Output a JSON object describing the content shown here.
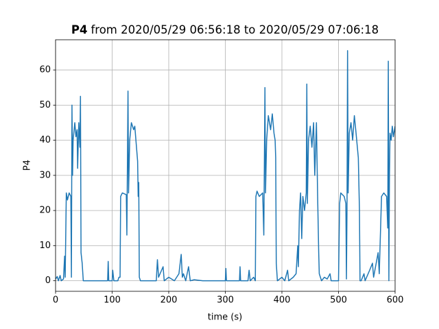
{
  "chart_data": {
    "type": "line",
    "title": {
      "variable": "P4",
      "text": "from 2020/05/29 06:56:18 to 2020/05/29 07:06:18"
    },
    "x_label": "time (s)",
    "y_label": "P4",
    "color": "#1f77b4",
    "grid": true,
    "xlim": [
      0,
      600
    ],
    "ylim": [
      -3.0,
      68.6
    ],
    "xticks": [
      0,
      100,
      200,
      300,
      400,
      500,
      600
    ],
    "yticks": [
      0,
      10,
      20,
      30,
      40,
      50,
      60
    ],
    "x": [
      0,
      3,
      5,
      8,
      10,
      14,
      16,
      17,
      18,
      19,
      21,
      24,
      27,
      28,
      29,
      30,
      31,
      34,
      36,
      38,
      39,
      41,
      43,
      44,
      45,
      47,
      49,
      92,
      93,
      94,
      100,
      101,
      103,
      110,
      112,
      114,
      115,
      118,
      125,
      126,
      128,
      129,
      131,
      134,
      138,
      140,
      143,
      145,
      146,
      147,
      148,
      150,
      178,
      180,
      182,
      190,
      192,
      200,
      210,
      218,
      222,
      224,
      226,
      230,
      235,
      238,
      245,
      260,
      300,
      301,
      302,
      325,
      326,
      327,
      340,
      342,
      344,
      350,
      353,
      354,
      356,
      360,
      366,
      368,
      370,
      371,
      373,
      376,
      380,
      383,
      386,
      388,
      389,
      390,
      392,
      400,
      405,
      410,
      412,
      420,
      425,
      428,
      429,
      431,
      433,
      435,
      437,
      440,
      443,
      444,
      445,
      447,
      450,
      453,
      456,
      458,
      461,
      463,
      465,
      466,
      470,
      475,
      480,
      485,
      487,
      500,
      502,
      504,
      510,
      513,
      514,
      515,
      516,
      517,
      519,
      522,
      525,
      528,
      531,
      535,
      537,
      538,
      540,
      545,
      547,
      555,
      560,
      562,
      570,
      572,
      576,
      580,
      585,
      587,
      588,
      589,
      590,
      591,
      593,
      595,
      597,
      600
    ],
    "values": [
      0.5,
      1.2,
      0,
      1.5,
      0,
      0.5,
      7,
      1,
      13,
      25,
      23,
      25,
      24,
      1,
      50,
      30,
      40,
      45,
      41,
      43,
      32,
      45,
      38,
      52.5,
      8,
      5,
      0,
      0,
      5.5,
      0,
      0,
      3,
      0,
      0,
      1,
      1,
      24,
      25,
      24.5,
      13,
      54,
      25,
      40,
      45,
      43,
      44,
      38,
      34,
      24,
      28,
      1,
      0,
      0,
      6,
      1,
      4,
      0,
      1,
      0,
      2,
      7.5,
      1,
      2,
      0,
      4,
      0,
      0.3,
      0,
      0,
      3.5,
      0,
      0,
      4,
      0,
      0,
      3,
      0,
      1,
      0,
      24,
      25.5,
      24,
      25,
      13,
      55,
      25,
      40,
      47,
      43,
      47.5,
      42,
      40,
      35,
      5,
      0,
      1,
      0,
      3,
      0,
      1,
      2,
      10,
      4,
      20,
      25,
      12,
      24,
      20,
      25,
      56,
      22,
      40,
      44,
      38,
      45,
      30,
      45,
      25,
      8,
      2,
      0,
      1,
      0.5,
      2,
      0,
      0,
      22,
      25,
      24,
      22,
      0.5,
      20,
      65.5,
      25,
      42,
      45,
      40,
      47,
      42,
      35,
      20,
      0,
      0,
      2,
      0,
      3,
      5,
      1,
      8,
      2,
      24,
      25,
      24,
      15,
      62.5,
      0,
      30,
      42,
      40,
      44,
      41,
      44
    ]
  }
}
